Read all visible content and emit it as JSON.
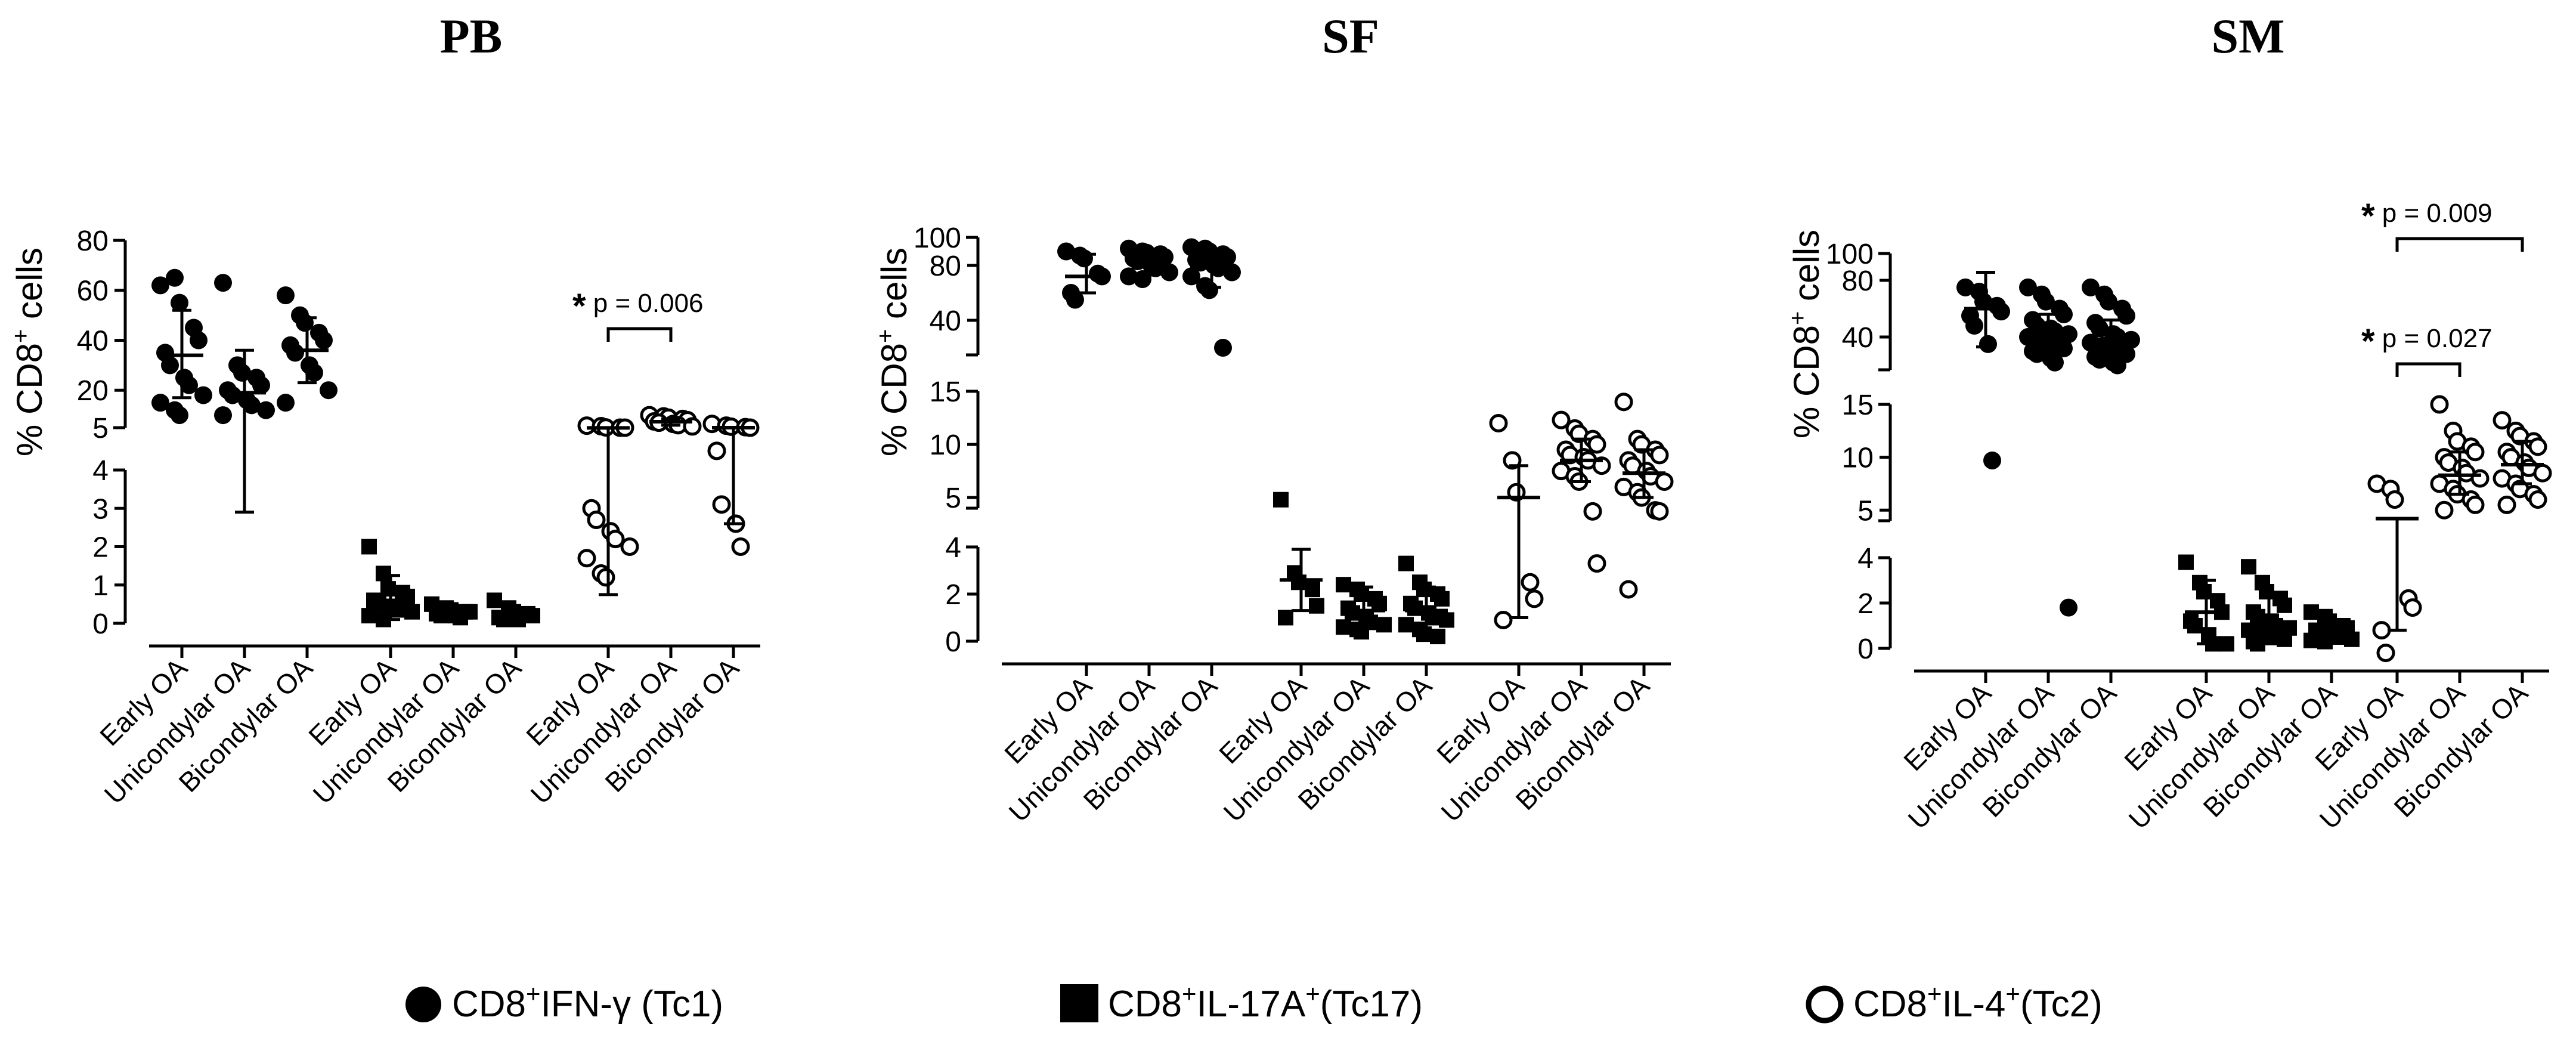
{
  "chart_data": [
    {
      "type": "scatter",
      "title": "PB",
      "ylabel": "% CD8+ cells",
      "ylabel_main": "% CD8",
      "ylabel_sup": "+",
      "ylabel_tail": " cells",
      "upper_axis": {
        "range": [
          5,
          80
        ],
        "ticks": [
          "5",
          "20",
          "40",
          "60",
          "80"
        ]
      },
      "lower_axis": {
        "range": [
          0,
          4
        ],
        "ticks": [
          "0",
          "1",
          "2",
          "3",
          "4"
        ]
      },
      "categories": [
        "Early OA",
        "Unicondylar OA",
        "Bicondylar OA",
        "Early OA",
        "Unicondylar OA",
        "Bicondylar OA",
        "Early OA",
        "Unicondylar OA",
        "Bicondylar OA"
      ],
      "groups": [
        {
          "marker": "circle",
          "seg": "upper",
          "mean": 34,
          "lo": 17,
          "hi": 52,
          "points": [
            62,
            65,
            55,
            45,
            40,
            35,
            30,
            25,
            22,
            18,
            15,
            12,
            10
          ]
        },
        {
          "marker": "circle",
          "seg": "upper",
          "mean": 19,
          "lo": 2.9,
          "hi": 36,
          "points": [
            63,
            30,
            27,
            25,
            22,
            20,
            18,
            16,
            14,
            12,
            10
          ]
        },
        {
          "marker": "circle",
          "seg": "upper",
          "mean": 36,
          "lo": 23,
          "hi": 49,
          "points": [
            58,
            50,
            47,
            43,
            40,
            38,
            35,
            30,
            27,
            20,
            15
          ]
        },
        {
          "marker": "square",
          "seg": "lower",
          "mean": 0.6,
          "lo": 0.1,
          "hi": 1.25,
          "points": [
            2.0,
            1.3,
            0.9,
            0.8,
            0.7,
            0.6,
            0.5,
            0.4,
            0.35,
            0.3,
            0.2,
            0.1
          ]
        },
        {
          "marker": "square",
          "seg": "lower",
          "mean": 0.3,
          "lo": 0.2,
          "hi": 0.45,
          "points": [
            0.5,
            0.4,
            0.35,
            0.3,
            0.3,
            0.25,
            0.2,
            0.2,
            0.15
          ]
        },
        {
          "marker": "square",
          "seg": "lower",
          "mean": 0.25,
          "lo": 0.1,
          "hi": 0.4,
          "points": [
            0.6,
            0.4,
            0.3,
            0.25,
            0.2,
            0.15,
            0.1,
            0.1
          ]
        },
        {
          "marker": "open",
          "seg": "lower",
          "mean": 4.9,
          "lo": 0.75,
          "hi": 4.9,
          "points": [
            5.8,
            5.6,
            5.1,
            5.0,
            5.0,
            3.0,
            2.7,
            2.4,
            2.2,
            2.0,
            1.7,
            1.3,
            1.2
          ]
        },
        {
          "marker": "open",
          "seg": "upper",
          "mean": 7.4,
          "lo": 6.0,
          "hi": 8.5,
          "points": [
            10,
            9.5,
            9,
            8.5,
            8,
            7.5,
            7,
            6.5,
            6,
            5.5
          ]
        },
        {
          "marker": "open",
          "seg": "lower",
          "mean": 5.0,
          "lo": 2.6,
          "hi": 5.0,
          "points": [
            6.5,
            5.8,
            5.4,
            5.2,
            5.0,
            4.5,
            3.1,
            2.6,
            2.0
          ]
        }
      ],
      "annotations": [
        {
          "from": 6,
          "to": 7,
          "star": "*",
          "label": " p = 0.006"
        }
      ]
    },
    {
      "type": "scatter",
      "title": "SF",
      "ylabel": "% CD8+ cells",
      "ylabel_main": "% CD8",
      "ylabel_sup": "+",
      "ylabel_tail": " cells",
      "upper_axis": {
        "range": [
          15,
          100
        ],
        "ticks": [
          "40",
          "80",
          "100"
        ]
      },
      "middle_axis": {
        "range": [
          4,
          15
        ],
        "ticks": [
          "5",
          "10",
          "15"
        ]
      },
      "lower_axis": {
        "range": [
          0,
          4
        ],
        "ticks": [
          "0",
          "2",
          "4"
        ]
      },
      "categories": [
        "Early OA",
        "Unicondylar OA",
        "Bicondylar OA",
        "Early OA",
        "Unicondylar OA",
        "Bicondylar OA",
        "Early OA",
        "Unicondylar OA",
        "Bicondylar OA"
      ],
      "groups": [
        {
          "marker": "circle",
          "seg": "upper",
          "mean": 72,
          "lo": 60,
          "hi": 88,
          "points": [
            90,
            87,
            85,
            74,
            72,
            60,
            55
          ]
        },
        {
          "marker": "circle",
          "seg": "upper",
          "mean": 82,
          "lo": 73,
          "hi": 90,
          "points": [
            92,
            90,
            89,
            88,
            86,
            85,
            83,
            80,
            78,
            75,
            72,
            70
          ]
        },
        {
          "marker": "circle",
          "seg": "upper",
          "mean": 79,
          "lo": 64,
          "hi": 91,
          "points": [
            93,
            92,
            90,
            88,
            86,
            84,
            82,
            80,
            78,
            75,
            72,
            65,
            62,
            20
          ]
        },
        {
          "marker": "square",
          "seg": "lower",
          "mean": 2.6,
          "lo": 1.3,
          "hi": 3.9,
          "points": [
            4.8,
            2.9,
            2.5,
            2.2,
            1.5,
            1.0
          ]
        },
        {
          "marker": "square",
          "seg": "lower",
          "mean": 1.3,
          "lo": 0.6,
          "hi": 2.3,
          "points": [
            2.4,
            2.2,
            2.0,
            1.8,
            1.6,
            1.4,
            1.2,
            1.0,
            0.8,
            0.7,
            0.6,
            0.5,
            0.4
          ]
        },
        {
          "marker": "square",
          "seg": "lower",
          "mean": 1.3,
          "lo": 0.4,
          "hi": 2.3,
          "points": [
            3.3,
            2.5,
            2.2,
            2.0,
            1.8,
            1.6,
            1.4,
            1.2,
            1.0,
            0.9,
            0.7,
            0.5,
            0.3,
            0.2
          ]
        },
        {
          "marker": "open",
          "seg": "middle",
          "mean": 5.0,
          "lo": 1.0,
          "hi": 8.0,
          "points": [
            12,
            8.5,
            5.5,
            2.5,
            1.8,
            0.9
          ]
        },
        {
          "marker": "open",
          "seg": "middle",
          "mean": 8.5,
          "lo": 6.5,
          "hi": 10.5,
          "points": [
            12.3,
            11.5,
            11,
            10.5,
            10,
            9.5,
            9,
            8.8,
            8.5,
            8,
            7.5,
            7,
            6.5,
            3.6,
            3.3
          ]
        },
        {
          "marker": "open",
          "seg": "middle",
          "mean": 7.3,
          "lo": 5.0,
          "hi": 9.5,
          "points": [
            14,
            10.5,
            10,
            9.5,
            9,
            8.5,
            8,
            7.5,
            7,
            6.5,
            6,
            5.5,
            5.0,
            3.8,
            3.4,
            2.2
          ]
        }
      ],
      "annotations": []
    },
    {
      "type": "scatter",
      "title": "SM",
      "ylabel": "% CD8+ cells",
      "ylabel_main": "% CD8",
      "ylabel_sup": "+",
      "ylabel_tail": " cells",
      "upper_axis": {
        "range": [
          15,
          100
        ],
        "ticks": [
          "40",
          "80",
          "100"
        ]
      },
      "middle_axis": {
        "range": [
          4,
          15
        ],
        "ticks": [
          "5",
          "10",
          "15"
        ]
      },
      "lower_axis": {
        "range": [
          0,
          4
        ],
        "ticks": [
          "0",
          "2",
          "4"
        ]
      },
      "categories": [
        "Early OA",
        "Unicondylar OA",
        "Bicondylar OA",
        "Early OA",
        "Unicondylar OA",
        "Bicondylar OA",
        "Early OA",
        "Unicondylar OA",
        "Bicondylar OA"
      ],
      "groups": [
        {
          "marker": "circle",
          "seg": "upper",
          "mean": 60,
          "lo": 33,
          "hi": 86,
          "points": [
            75,
            72,
            65,
            62,
            58,
            55,
            48,
            35,
            9.7
          ]
        },
        {
          "marker": "circle",
          "seg": "upper",
          "mean": 42,
          "lo": 29,
          "hi": 56,
          "points": [
            75,
            70,
            65,
            60,
            56,
            52,
            48,
            46,
            44,
            42,
            40,
            38,
            36,
            34,
            32,
            30,
            28,
            25,
            22,
            1.8
          ]
        },
        {
          "marker": "circle",
          "seg": "upper",
          "mean": 38,
          "lo": 28,
          "hi": 52,
          "points": [
            75,
            70,
            65,
            60,
            55,
            50,
            46,
            42,
            40,
            38,
            36,
            34,
            32,
            30,
            28,
            26,
            24,
            22,
            20
          ]
        },
        {
          "marker": "square",
          "seg": "lower",
          "mean": 1.6,
          "lo": 0.2,
          "hi": 3.0,
          "points": [
            3.8,
            2.9,
            2.5,
            2.1,
            1.6,
            1.2,
            1.0,
            0.6,
            0.2,
            0.2
          ]
        },
        {
          "marker": "square",
          "seg": "lower",
          "mean": 1.0,
          "lo": 0.2,
          "hi": 2.3,
          "points": [
            3.6,
            2.9,
            2.5,
            2.2,
            1.9,
            1.6,
            1.4,
            1.2,
            1.0,
            0.9,
            0.8,
            0.7,
            0.6,
            0.5,
            0.4,
            0.3,
            0.2
          ]
        },
        {
          "marker": "square",
          "seg": "lower",
          "mean": 0.7,
          "lo": 0.4,
          "hi": 1.2,
          "points": [
            1.6,
            1.4,
            1.2,
            1.0,
            0.9,
            0.8,
            0.7,
            0.6,
            0.5,
            0.4,
            0.35,
            0.3
          ]
        },
        {
          "marker": "open",
          "seg": "middle",
          "mean": 4.2,
          "lo": 0.8,
          "hi": 4.2,
          "points": [
            7.5,
            7.0,
            6.0,
            2.2,
            1.8,
            0.8,
            -0.2
          ]
        },
        {
          "marker": "open",
          "seg": "middle",
          "mean": 8.3,
          "lo": 6.5,
          "hi": 10.5,
          "points": [
            15,
            12.5,
            11.5,
            11,
            10.5,
            10,
            9.5,
            9,
            8.5,
            8,
            7.5,
            7,
            6.5,
            6,
            5.5,
            5
          ]
        },
        {
          "marker": "open",
          "seg": "middle",
          "mean": 9.3,
          "lo": 7.5,
          "hi": 11.5,
          "points": [
            13.5,
            12.5,
            12,
            11.5,
            11,
            10.5,
            10,
            9.5,
            9,
            8.5,
            8,
            7.5,
            7,
            6.5,
            6,
            5.5
          ]
        }
      ],
      "annotations": [
        {
          "from": 6,
          "to": 7,
          "star": "*",
          "label": " p = 0.027"
        },
        {
          "from": 6,
          "to": 8,
          "star": "*",
          "label": " p = 0.009"
        }
      ]
    }
  ],
  "legend": [
    {
      "marker": "circle",
      "pre": "CD8",
      "sup1": "+",
      "mid": "IFN-γ (Tc1)",
      "sup2": ""
    },
    {
      "marker": "square",
      "pre": "CD8",
      "sup1": "+",
      "mid": "IL-17A",
      "sup2": "+",
      "post": "(Tc17)"
    },
    {
      "marker": "open",
      "pre": "CD8",
      "sup1": "+",
      "mid": "IL-4",
      "sup2": "+",
      "post": "(Tc2)"
    }
  ]
}
